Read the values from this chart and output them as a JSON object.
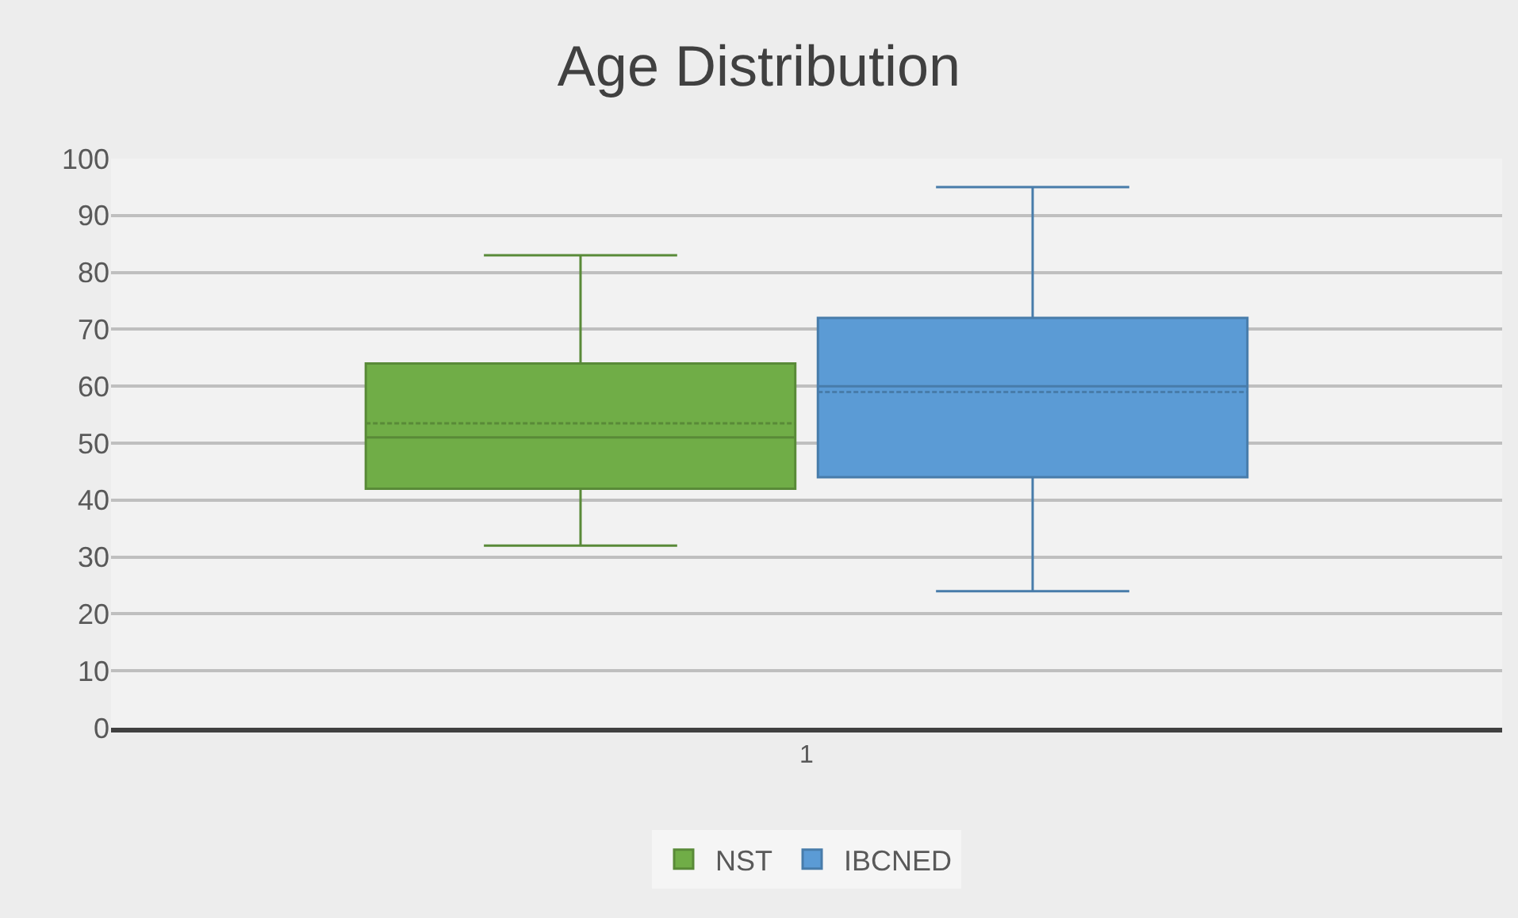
{
  "chart_data": {
    "type": "box",
    "title": "Age Distribution",
    "categories": [
      "1"
    ],
    "series": [
      {
        "name": "NST",
        "color": "#70ad47",
        "boxes": [
          {
            "low": 32,
            "q1": 42,
            "median": 51,
            "q3": 64,
            "high": 83,
            "mean": 53.5
          }
        ]
      },
      {
        "name": "IBCNED",
        "color": "#5b9bd5",
        "boxes": [
          {
            "low": 24,
            "q1": 44,
            "median": 60,
            "q3": 72,
            "high": 95,
            "mean": 59
          }
        ]
      }
    ],
    "ylim": [
      0,
      100
    ],
    "yticks": [
      0,
      10,
      20,
      30,
      40,
      50,
      60,
      70,
      80,
      90,
      100
    ],
    "grid": "y",
    "legend": "bottom"
  }
}
